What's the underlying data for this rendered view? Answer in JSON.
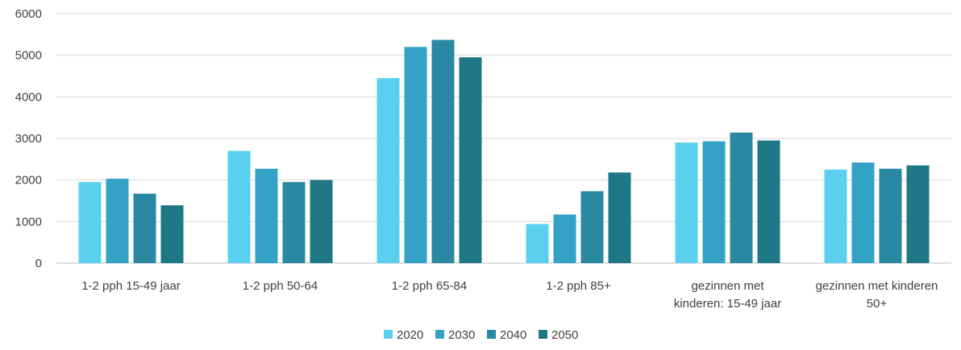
{
  "chart_data": {
    "type": "bar",
    "title": "",
    "xlabel": "",
    "ylabel": "",
    "ylim": [
      0,
      6000
    ],
    "yticks": [
      0,
      1000,
      2000,
      3000,
      4000,
      5000,
      6000
    ],
    "grid": true,
    "legend_position": "bottom",
    "categories": [
      [
        "1-2 pph 15-49 jaar"
      ],
      [
        "1-2 pph 50-64"
      ],
      [
        "1-2 pph 65-84"
      ],
      [
        "1-2 pph 85+"
      ],
      [
        "gezinnen met",
        "kinderen: 15-49 jaar"
      ],
      [
        "gezinnen met kinderen",
        "50+"
      ]
    ],
    "series": [
      {
        "name": "2020",
        "color": "#5bd0ee",
        "values": [
          1950,
          2700,
          4450,
          940,
          2900,
          2250
        ]
      },
      {
        "name": "2030",
        "color": "#33a2c6",
        "values": [
          2030,
          2270,
          5200,
          1170,
          2930,
          2420
        ]
      },
      {
        "name": "2040",
        "color": "#2b88a3",
        "values": [
          1670,
          1950,
          5370,
          1730,
          3140,
          2270
        ]
      },
      {
        "name": "2050",
        "color": "#1d7784",
        "values": [
          1390,
          2000,
          4950,
          2180,
          2950,
          2350
        ]
      }
    ]
  }
}
